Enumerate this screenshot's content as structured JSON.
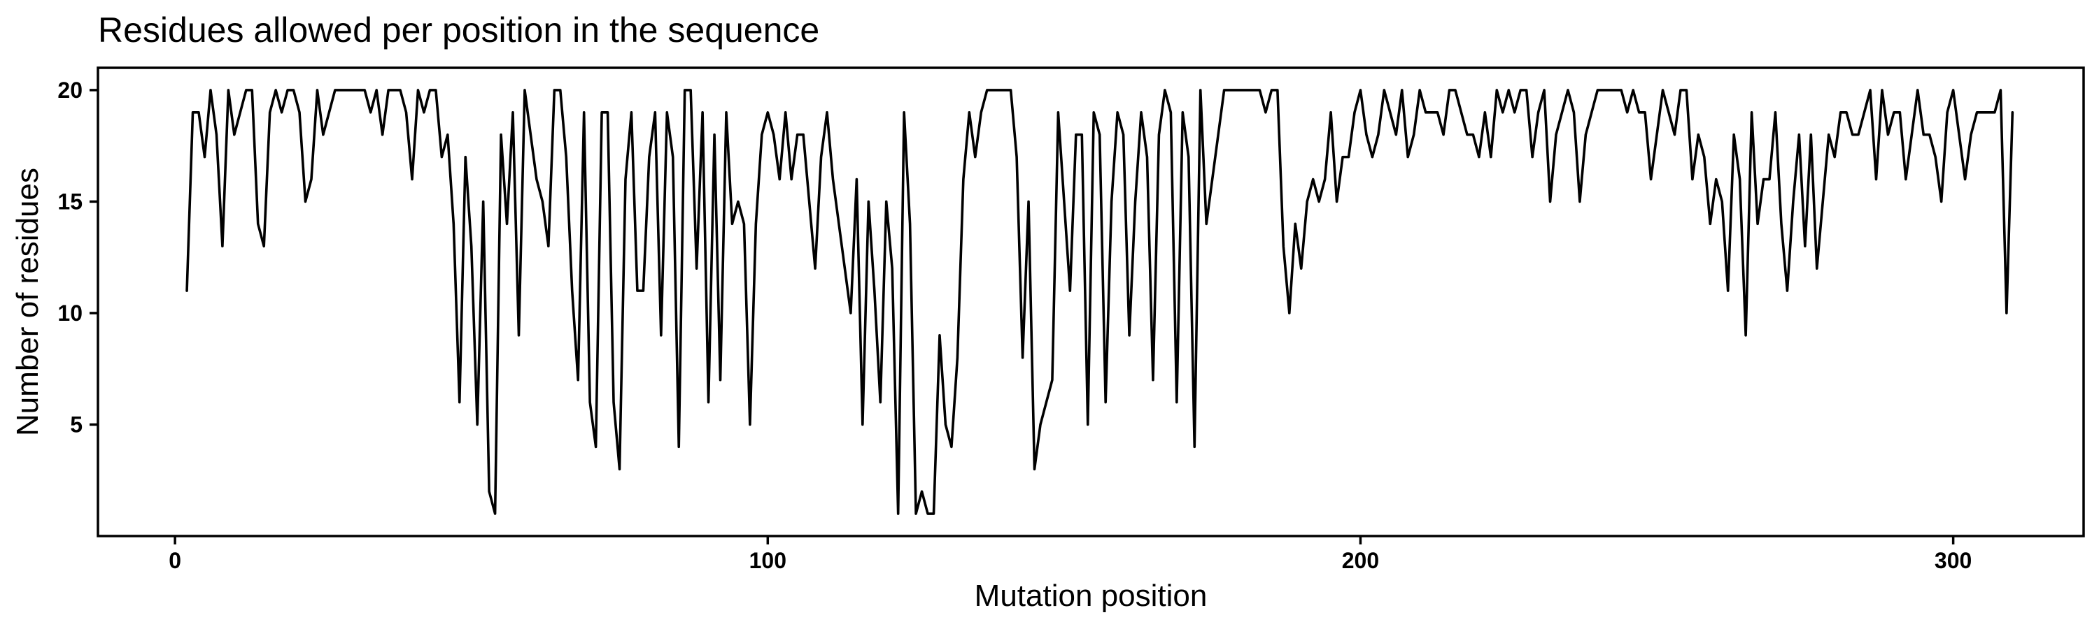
{
  "chart_data": {
    "type": "line",
    "title": "Residues allowed per position in the sequence",
    "xlabel": "Mutation position",
    "ylabel": "Number of residues",
    "xlim": [
      -13,
      322
    ],
    "ylim": [
      0,
      21
    ],
    "x_ticks": [
      0,
      100,
      200,
      300
    ],
    "y_ticks": [
      5,
      10,
      15,
      20
    ],
    "grid": false,
    "legend": "none",
    "line_color": "#000000",
    "series": [
      {
        "x_start": 2,
        "values": [
          11,
          19,
          19,
          17,
          20,
          18,
          13,
          20,
          18,
          19,
          20,
          20,
          14,
          13,
          19,
          20,
          19,
          20,
          20,
          19,
          15,
          16,
          20,
          18,
          19,
          20,
          20,
          20,
          20,
          20,
          20,
          19,
          20,
          18,
          20,
          20,
          20,
          19,
          16,
          20,
          19,
          20,
          20,
          17,
          18,
          14,
          6,
          17,
          13,
          5,
          15,
          2,
          1,
          18,
          14,
          19,
          9,
          20,
          18,
          16,
          15,
          13,
          20,
          20,
          17,
          11,
          7,
          19,
          6,
          4,
          19,
          19,
          6,
          3,
          16,
          19,
          11,
          11,
          17,
          19,
          9,
          19,
          17,
          4,
          20,
          20,
          12,
          19,
          6,
          18,
          7,
          19,
          14,
          15,
          14,
          5,
          14,
          18,
          19,
          18,
          16,
          19,
          16,
          18,
          18,
          15,
          12,
          17,
          19,
          16,
          14,
          12,
          10,
          16,
          5,
          15,
          11,
          6,
          15,
          12,
          1,
          19,
          14,
          1,
          2,
          1,
          1,
          9,
          5,
          4,
          8,
          16,
          19,
          17,
          19,
          20,
          20,
          20,
          20,
          20,
          17,
          8,
          15,
          3,
          5,
          6,
          7,
          19,
          15,
          11,
          18,
          18,
          5,
          19,
          18,
          6,
          15,
          19,
          18,
          9,
          15,
          19,
          17,
          7,
          18,
          20,
          19,
          6,
          19,
          17,
          4,
          20,
          14,
          16,
          18,
          20,
          20,
          20,
          20,
          20,
          20,
          20,
          19,
          20,
          20,
          13,
          10,
          14,
          12,
          15,
          16,
          15,
          16,
          19,
          15,
          17,
          17,
          19,
          20,
          18,
          17,
          18,
          20,
          19,
          18,
          20,
          17,
          18,
          20,
          19,
          19,
          19,
          18,
          20,
          20,
          19,
          18,
          18,
          17,
          19,
          17,
          20,
          19,
          20,
          19,
          20,
          20,
          17,
          19,
          20,
          15,
          18,
          19,
          20,
          19,
          15,
          18,
          19,
          20,
          20,
          20,
          20,
          20,
          19,
          20,
          19,
          19,
          16,
          18,
          20,
          19,
          18,
          20,
          20,
          16,
          18,
          17,
          14,
          16,
          15,
          11,
          18,
          16,
          9,
          19,
          14,
          16,
          16,
          19,
          14,
          11,
          15,
          18,
          13,
          18,
          12,
          15,
          18,
          17,
          19,
          19,
          18,
          18,
          19,
          20,
          16,
          20,
          18,
          19,
          19,
          16,
          18,
          20,
          18,
          18,
          17,
          15,
          19,
          20,
          18,
          16,
          18,
          19,
          19,
          19,
          19,
          20,
          10,
          19
        ]
      }
    ]
  }
}
